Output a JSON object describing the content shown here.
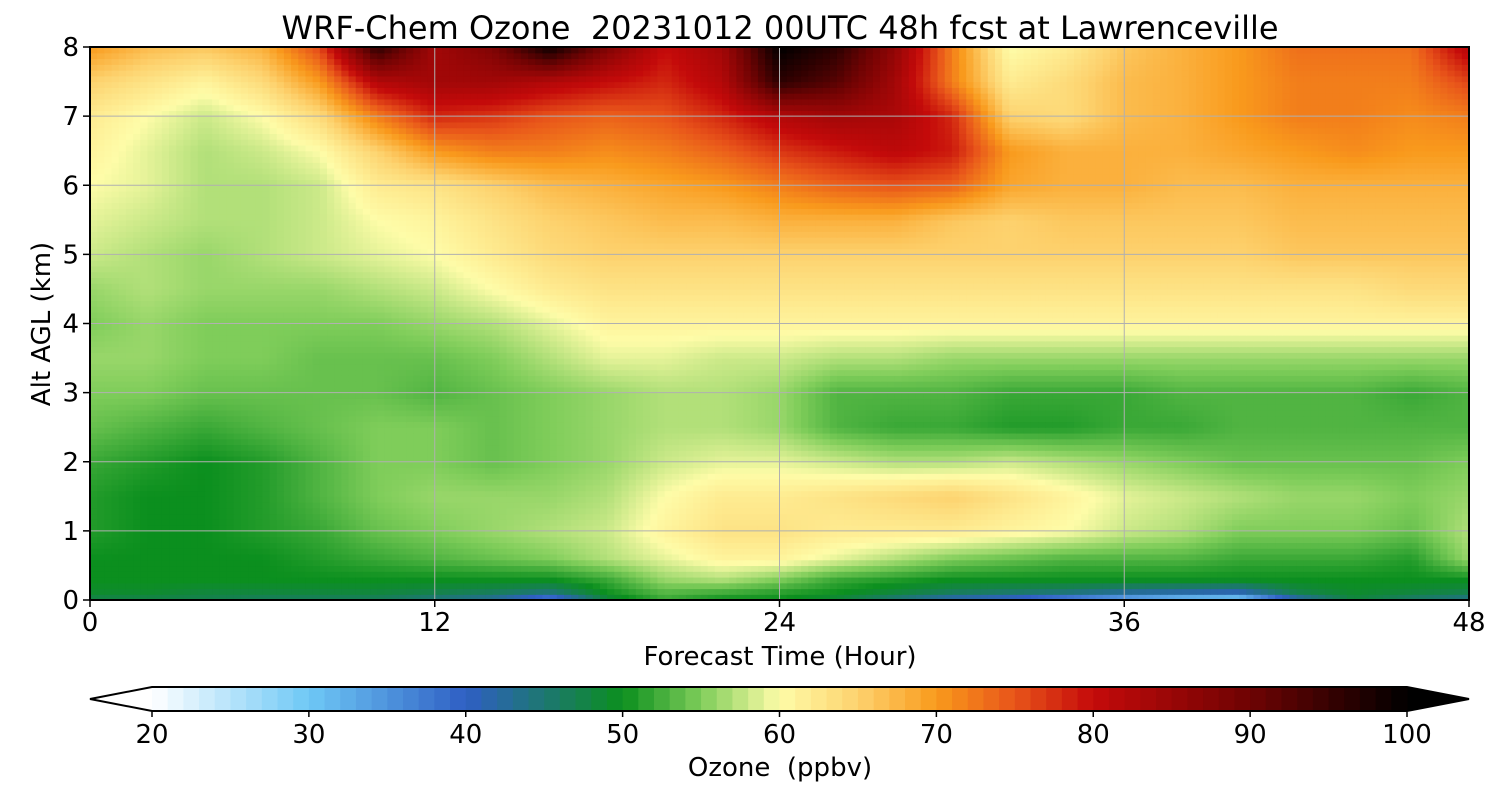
{
  "chart_data": {
    "type": "heatmap",
    "title": "WRF-Chem Ozone  20231012 00UTC 48h fcst at Lawrenceville",
    "xlabel": "Forecast Time (Hour)",
    "ylabel": "Alt AGL (km)",
    "xlim": [
      0,
      48
    ],
    "ylim": [
      0,
      8
    ],
    "xticks": [
      "0",
      "12",
      "24",
      "36",
      "48"
    ],
    "yticks": [
      "0",
      "1",
      "2",
      "3",
      "4",
      "5",
      "6",
      "7",
      "8"
    ],
    "grid": true,
    "colorbar": {
      "label": "Ozone  (ppbv)",
      "min": 20,
      "max": 100,
      "ticks": [
        "20",
        "30",
        "40",
        "50",
        "60",
        "70",
        "80",
        "90",
        "100"
      ],
      "extend": "both",
      "colors": [
        {
          "v": 20,
          "c": "#ffffff"
        },
        {
          "v": 30,
          "c": "#6ec8f5"
        },
        {
          "v": 40,
          "c": "#2f5fc4"
        },
        {
          "v": 50,
          "c": "#0b8f1e"
        },
        {
          "v": 55,
          "c": "#7fcd5a"
        },
        {
          "v": 60,
          "c": "#fefca8"
        },
        {
          "v": 65,
          "c": "#fdd26e"
        },
        {
          "v": 70,
          "c": "#f99a1c"
        },
        {
          "v": 75,
          "c": "#e8541a"
        },
        {
          "v": 80,
          "c": "#c40a0a"
        },
        {
          "v": 90,
          "c": "#6e0303"
        },
        {
          "v": 100,
          "c": "#000000"
        }
      ]
    },
    "x": [
      0,
      2,
      4,
      6,
      8,
      10,
      12,
      14,
      16,
      18,
      20,
      22,
      24,
      26,
      28,
      30,
      32,
      34,
      36,
      38,
      40,
      42,
      44,
      46,
      48
    ],
    "y": [
      0,
      0.1,
      0.3,
      0.6,
      1,
      1.5,
      2,
      2.5,
      3,
      3.5,
      4,
      4.5,
      5,
      5.5,
      6,
      6.5,
      7,
      7.5,
      8
    ],
    "values": [
      [
        47,
        47,
        47,
        46,
        46,
        46,
        44,
        42,
        35,
        48,
        52,
        50,
        50,
        48,
        44,
        40,
        38,
        34,
        30,
        27,
        26,
        40,
        48,
        45,
        43
      ],
      [
        49,
        49,
        48,
        48,
        48,
        48,
        47,
        46,
        44,
        50,
        53,
        52,
        51,
        50,
        48,
        46,
        45,
        44,
        42,
        41,
        40,
        47,
        49,
        48,
        47
      ],
      [
        50,
        50,
        50,
        50,
        50,
        50,
        50,
        50,
        50,
        52,
        56,
        57,
        55,
        52,
        51,
        50,
        50,
        50,
        50,
        50,
        50,
        50,
        50,
        50,
        50
      ],
      [
        50,
        50,
        50,
        50,
        51,
        52,
        53,
        54,
        55,
        57,
        59,
        61,
        61,
        59,
        57,
        55,
        54,
        53,
        53,
        53,
        52,
        52,
        52,
        51,
        56
      ],
      [
        51,
        50,
        50,
        51,
        52,
        54,
        55,
        56,
        57,
        58,
        61,
        63,
        63,
        62,
        62,
        62,
        61,
        60,
        58,
        57,
        55,
        55,
        55,
        54,
        57
      ],
      [
        51,
        50,
        50,
        51,
        53,
        55,
        56,
        56,
        56,
        57,
        60,
        62,
        62,
        63,
        64,
        65,
        63,
        61,
        59,
        58,
        57,
        56,
        56,
        55,
        56
      ],
      [
        52,
        51,
        50,
        51,
        53,
        55,
        55,
        54,
        55,
        56,
        58,
        59,
        59,
        58,
        57,
        57,
        58,
        57,
        56,
        55,
        54,
        54,
        54,
        54,
        55
      ],
      [
        54,
        53,
        52,
        53,
        54,
        55,
        55,
        54,
        55,
        56,
        57,
        57,
        56,
        53,
        52,
        52,
        51,
        51,
        52,
        52,
        53,
        53,
        53,
        53,
        53
      ],
      [
        55,
        55,
        54,
        54,
        54,
        54,
        53,
        54,
        55,
        56,
        57,
        57,
        56,
        53,
        53,
        53,
        52,
        52,
        52,
        53,
        53,
        53,
        53,
        52,
        53
      ],
      [
        56,
        56,
        55,
        55,
        54,
        54,
        54,
        55,
        57,
        59,
        59,
        58,
        58,
        57,
        57,
        56,
        56,
        56,
        56,
        56,
        56,
        56,
        56,
        56,
        56
      ],
      [
        55,
        56,
        55,
        55,
        55,
        55,
        56,
        57,
        59,
        61,
        61,
        61,
        61,
        61,
        61,
        61,
        61,
        61,
        61,
        61,
        61,
        61,
        61,
        61,
        61
      ],
      [
        56,
        57,
        56,
        56,
        56,
        57,
        58,
        60,
        62,
        63,
        63,
        63,
        63,
        63,
        63,
        63,
        63,
        63,
        63,
        63,
        63,
        63,
        63,
        64,
        64
      ],
      [
        58,
        57,
        56,
        57,
        58,
        59,
        60,
        62,
        64,
        65,
        65,
        65,
        65,
        65,
        65,
        65,
        65,
        65,
        65,
        65,
        65,
        66,
        66,
        66,
        66
      ],
      [
        59,
        58,
        57,
        57,
        58,
        60,
        61,
        63,
        65,
        66,
        67,
        67,
        68,
        68,
        68,
        66,
        65,
        66,
        66,
        66,
        66,
        67,
        67,
        67,
        67
      ],
      [
        60,
        59,
        57,
        57,
        58,
        62,
        63,
        65,
        67,
        68,
        69,
        70,
        72,
        74,
        75,
        74,
        69,
        68,
        68,
        67,
        67,
        68,
        68,
        68,
        68
      ],
      [
        61,
        59,
        57,
        58,
        60,
        65,
        70,
        72,
        72,
        71,
        72,
        74,
        77,
        79,
        81,
        79,
        70,
        68,
        68,
        68,
        69,
        70,
        71,
        70,
        70
      ],
      [
        62,
        60,
        58,
        60,
        64,
        72,
        78,
        77,
        75,
        74,
        75,
        78,
        82,
        84,
        83,
        78,
        65,
        64,
        67,
        68,
        70,
        72,
        72,
        71,
        72
      ],
      [
        65,
        63,
        61,
        64,
        70,
        82,
        84,
        84,
        82,
        80,
        78,
        82,
        96,
        92,
        84,
        72,
        62,
        64,
        67,
        68,
        70,
        72,
        72,
        72,
        76
      ],
      [
        70,
        67,
        66,
        68,
        76,
        96,
        84,
        88,
        99,
        88,
        80,
        84,
        100,
        96,
        86,
        72,
        60,
        62,
        66,
        68,
        70,
        73,
        73,
        73,
        82
      ]
    ]
  }
}
